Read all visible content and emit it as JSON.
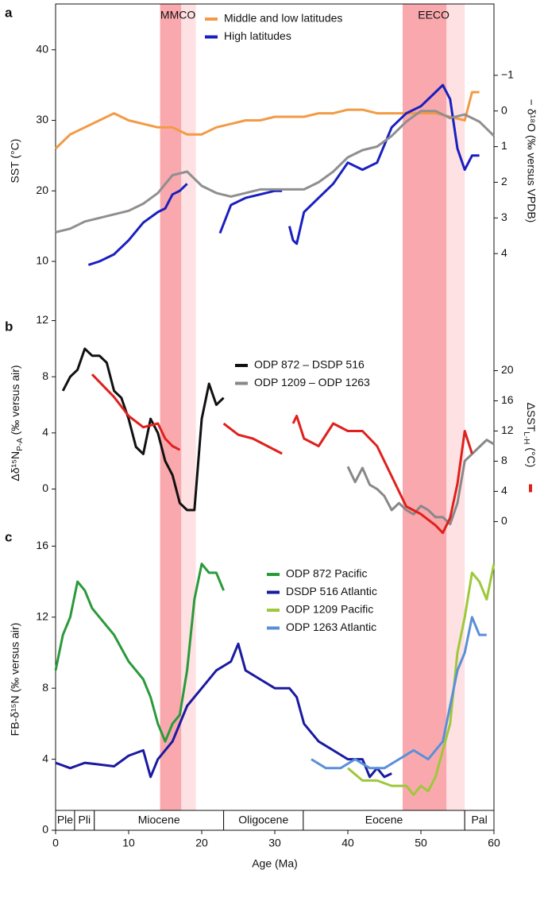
{
  "chart_data": [
    {
      "type": "line",
      "letter": "a",
      "ylabel": "SST (°C)",
      "y2label": "− δ¹⁸O (‰ versus VPDB)",
      "ylim": [
        2,
        46.5
      ],
      "yticks": [
        10,
        20,
        30,
        40
      ],
      "y2lim": [
        5.8,
        -3
      ],
      "y2ticks": [
        {
          "value": -1,
          "label": "−1"
        },
        0,
        1,
        2,
        3,
        4
      ],
      "legend": "top",
      "series": [
        {
          "name": "Middle and low latitudes",
          "color": "#f39a45",
          "x": [
            0,
            2,
            4,
            6,
            8,
            10,
            12,
            14,
            16,
            18,
            20,
            22,
            24,
            26,
            28,
            30,
            32,
            34,
            36,
            38,
            40,
            42,
            44,
            46,
            48,
            50,
            52,
            54,
            56,
            57,
            58
          ],
          "values": [
            26,
            28,
            29,
            30,
            31,
            30,
            29.5,
            29,
            29,
            28,
            28,
            29,
            29.5,
            30,
            30,
            30.5,
            30.5,
            30.5,
            31,
            31,
            31.5,
            31.5,
            31,
            31,
            31,
            31,
            31,
            30.5,
            30,
            34,
            34
          ]
        },
        {
          "name": "High latitudes",
          "color": "#1a1fbf",
          "x": [
            4.5,
            6,
            8,
            10,
            12,
            14,
            15,
            16,
            17,
            18,
            20,
            22.5,
            24,
            26,
            28,
            30,
            31,
            31.5,
            32,
            32.5,
            33,
            34,
            36,
            38,
            40,
            42,
            44,
            46,
            48,
            50,
            52,
            53,
            54,
            55,
            56,
            57,
            58
          ],
          "values": [
            9.5,
            10,
            11,
            13,
            15.5,
            17,
            17.5,
            19.5,
            20,
            21,
            null,
            14,
            18,
            19,
            19.5,
            20,
            20,
            null,
            15,
            13,
            12.5,
            17,
            19,
            21,
            24,
            23,
            24,
            29,
            31,
            32,
            34,
            35,
            33,
            26,
            23,
            25,
            25
          ]
        },
        {
          "color": "#8f8f8f",
          "axis": "y2",
          "x": [
            0,
            2,
            4,
            6,
            8,
            10,
            12,
            14,
            16,
            18,
            20,
            22,
            24,
            26,
            28,
            30,
            32,
            34,
            36,
            38,
            40,
            42,
            44,
            46,
            48,
            50,
            52,
            54,
            56,
            58,
            60
          ],
          "values": [
            3.4,
            3.3,
            3.1,
            3,
            2.9,
            2.8,
            2.6,
            2.3,
            1.8,
            1.7,
            2.1,
            2.3,
            2.4,
            2.3,
            2.2,
            2.2,
            2.2,
            2.2,
            2,
            1.7,
            1.3,
            1.1,
            1,
            0.7,
            0.3,
            0,
            0,
            0.2,
            0.1,
            0.3,
            0.7
          ]
        }
      ]
    },
    {
      "type": "line",
      "letter": "b",
      "ylabel": {
        "main": "Δδ¹⁵N",
        "sub": "P-A",
        "rest": " (‰ versus air)"
      },
      "y2label": {
        "main": "ΔSST",
        "sub": "L-H",
        "rest": " (°C)"
      },
      "ylim": [
        -2.8,
        12.2
      ],
      "yticks": [
        0,
        4,
        8,
        12
      ],
      "y2lim": [
        -0.9,
        27
      ],
      "y2ticks": [
        0,
        4,
        8,
        12,
        16,
        20
      ],
      "y2color": "#e0201c",
      "legend": "top",
      "series": [
        {
          "name": "ODP 872 – DSDP 516",
          "color": "#111111",
          "x": [
            1,
            2,
            3,
            4,
            5,
            6,
            7,
            8,
            9,
            10,
            11,
            12,
            13,
            14,
            15,
            16,
            17,
            18,
            19,
            20,
            21,
            22,
            23
          ],
          "values": [
            7,
            8,
            8.5,
            10,
            9.5,
            9.5,
            9,
            7,
            6.5,
            5,
            3,
            2.5,
            5,
            4,
            2,
            1,
            -1,
            -1.5,
            -1.5,
            5,
            7.5,
            6,
            6.5
          ]
        },
        {
          "name": "ODP 1209 – ODP 1263",
          "color": "#888888",
          "x": [
            40,
            41,
            42,
            43,
            44,
            45,
            46,
            47,
            48,
            49,
            50,
            51,
            52,
            53,
            54,
            55,
            56,
            57,
            58,
            59,
            60
          ],
          "values": [
            1.6,
            0.5,
            1.5,
            0.3,
            0,
            -0.5,
            -1.5,
            -1,
            -1.5,
            -1.8,
            -1.2,
            -1.5,
            -2,
            -2,
            -2.5,
            -1,
            2,
            2.5,
            3,
            3.5,
            3.2
          ]
        },
        {
          "color": "#e0201c",
          "axis": "y2",
          "x": [
            5,
            6,
            8,
            10,
            12,
            14,
            15,
            16,
            17,
            20,
            23,
            25,
            27,
            29,
            31,
            32,
            32.5,
            33,
            34,
            36,
            38,
            40,
            42,
            44,
            46,
            48,
            50,
            52,
            53,
            54,
            55,
            56,
            57
          ],
          "values": [
            19.5,
            18.5,
            16.5,
            14,
            12.5,
            13,
            11,
            10,
            9.5,
            null,
            13,
            11.5,
            11,
            10,
            9,
            null,
            13,
            14,
            11,
            10,
            13,
            12,
            12,
            10,
            6,
            2,
            1,
            -0.5,
            -1.5,
            0.5,
            5,
            12,
            9
          ]
        }
      ]
    },
    {
      "type": "line",
      "letter": "c",
      "ylabel": "FB-δ¹⁵N (‰ versus air)",
      "ylim": [
        0,
        17
      ],
      "yticks": [
        0,
        4,
        8,
        12,
        16
      ],
      "legend": "top",
      "series": [
        {
          "name": "ODP 872 Pacific",
          "color": "#2a9a3a",
          "x": [
            0,
            1,
            2,
            3,
            4,
            5,
            6,
            8,
            10,
            12,
            13,
            14,
            15,
            16,
            17,
            18,
            19,
            20,
            21,
            22,
            23
          ],
          "values": [
            9,
            11,
            12,
            14,
            13.5,
            12.5,
            12,
            11,
            9.5,
            8.5,
            7.5,
            6,
            5,
            6,
            6.5,
            9,
            13,
            15,
            14.5,
            14.5,
            13.5
          ]
        },
        {
          "name": "DSDP 516 Atlantic",
          "color": "#1a1aa0",
          "x": [
            0,
            2,
            4,
            6,
            8,
            10,
            12,
            13,
            14,
            16,
            18,
            20,
            22,
            24,
            25,
            26,
            28,
            30,
            32,
            33,
            34,
            36,
            38,
            40,
            42,
            43,
            44,
            45,
            46
          ],
          "values": [
            3.8,
            3.5,
            3.8,
            3.7,
            3.6,
            4.2,
            4.5,
            3,
            4,
            5,
            7,
            8,
            9,
            9.5,
            10.5,
            9,
            8.5,
            8,
            8,
            7.5,
            6,
            5,
            4.5,
            4,
            4,
            3,
            3.5,
            3,
            3.2
          ]
        },
        {
          "name": "ODP 1209 Pacific",
          "color": "#9ec83a",
          "x": [
            40,
            42,
            44,
            46,
            48,
            49,
            50,
            51,
            52,
            54,
            55,
            56,
            57,
            58,
            59,
            60
          ],
          "values": [
            3.5,
            2.8,
            2.8,
            2.5,
            2.5,
            2,
            2.5,
            2.2,
            3,
            6,
            10,
            12,
            14.5,
            14,
            13,
            15
          ]
        },
        {
          "name": "ODP 1263 Atlantic",
          "color": "#5a8fd8",
          "x": [
            35,
            37,
            39,
            41,
            43,
            45,
            47,
            49,
            51,
            53,
            55,
            56,
            57,
            58,
            59
          ],
          "values": [
            4,
            3.5,
            3.5,
            4,
            3.5,
            3.5,
            4,
            4.5,
            4,
            5,
            9,
            10,
            12,
            11,
            11
          ]
        }
      ]
    }
  ],
  "shared_x": {
    "xlabel": "Age (Ma)",
    "xlim": [
      0,
      60
    ],
    "xticks": [
      0,
      10,
      20,
      30,
      40,
      50,
      60
    ],
    "bands": [
      {
        "label": "MMCO",
        "start": 14.3,
        "end": 17.2,
        "light_end": 19.2
      },
      {
        "label": "EECO",
        "start": 47.5,
        "end": 53.5,
        "light_end": 56
      }
    ],
    "epochs": [
      {
        "label": "Ple",
        "start": 0,
        "end": 2.6
      },
      {
        "label": "Pli",
        "start": 2.6,
        "end": 5.3
      },
      {
        "label": "Miocene",
        "start": 5.3,
        "end": 23
      },
      {
        "label": "Oligocene",
        "start": 23,
        "end": 33.9
      },
      {
        "label": "Eocene",
        "start": 33.9,
        "end": 56
      },
      {
        "label": "Pal",
        "start": 56,
        "end": 60
      }
    ]
  }
}
